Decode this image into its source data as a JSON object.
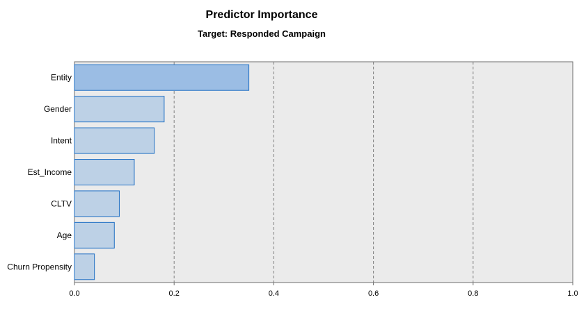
{
  "chart_data": {
    "type": "bar",
    "orientation": "horizontal",
    "title": "Predictor Importance",
    "subtitle": "Target: Responded Campaign",
    "categories": [
      "Entity",
      "Gender",
      "Intent",
      "Est_Income",
      "CLTV",
      "Age",
      "Churn Propensity"
    ],
    "values": [
      0.35,
      0.18,
      0.16,
      0.12,
      0.09,
      0.08,
      0.04
    ],
    "xlim": [
      0,
      1.0
    ],
    "xticks": [
      "0.0",
      "0.2",
      "0.4",
      "0.6",
      "0.8",
      "1.0"
    ],
    "xlabel": "",
    "ylabel": "",
    "grid": "vertical dashed",
    "colors": {
      "highlight_bar": "#9bbde4",
      "bar": "#bdd1e6",
      "bar_stroke": "#1f6fc4",
      "plot_bg": "#ebebeb",
      "grid": "#808080"
    }
  }
}
